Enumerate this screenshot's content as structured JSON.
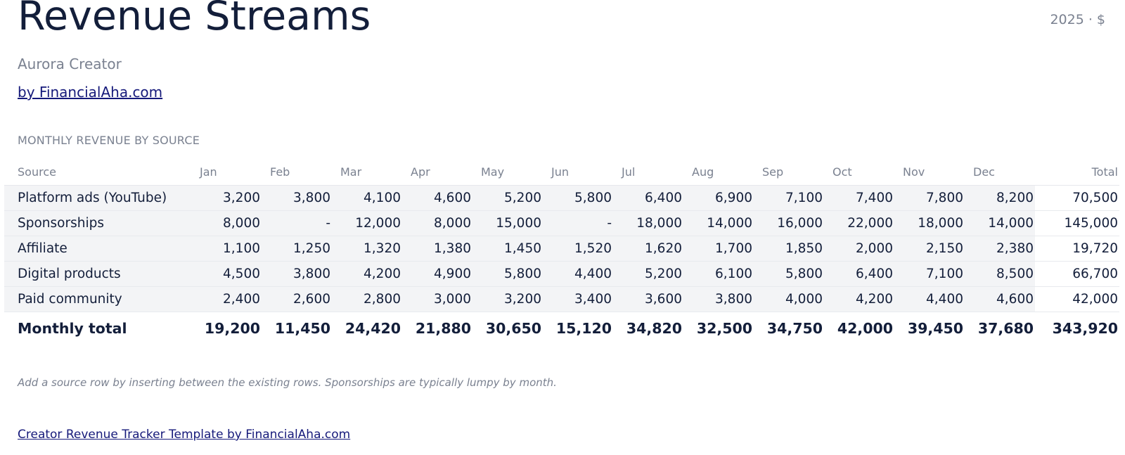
{
  "header": {
    "title": "Revenue Streams",
    "meta": "2025 · $",
    "subtitle": "Aurora Creator",
    "byline": "by FinancialAha.com"
  },
  "section_label": "MONTHLY REVENUE BY SOURCE",
  "table": {
    "columns": [
      "Source",
      "Jan",
      "Feb",
      "Mar",
      "Apr",
      "May",
      "Jun",
      "Jul",
      "Aug",
      "Sep",
      "Oct",
      "Nov",
      "Dec",
      "Total"
    ],
    "rows": [
      {
        "source": "Platform ads (YouTube)",
        "values": [
          "3,200",
          "3,800",
          "4,100",
          "4,600",
          "5,200",
          "5,800",
          "6,400",
          "6,900",
          "7,100",
          "7,400",
          "7,800",
          "8,200"
        ],
        "total": "70,500"
      },
      {
        "source": "Sponsorships",
        "values": [
          "8,000",
          "-",
          "12,000",
          "8,000",
          "15,000",
          "-",
          "18,000",
          "14,000",
          "16,000",
          "22,000",
          "18,000",
          "14,000"
        ],
        "total": "145,000"
      },
      {
        "source": "Affiliate",
        "values": [
          "1,100",
          "1,250",
          "1,320",
          "1,380",
          "1,450",
          "1,520",
          "1,620",
          "1,700",
          "1,850",
          "2,000",
          "2,150",
          "2,380"
        ],
        "total": "19,720"
      },
      {
        "source": "Digital products",
        "values": [
          "4,500",
          "3,800",
          "4,200",
          "4,900",
          "5,800",
          "4,400",
          "5,200",
          "6,100",
          "5,800",
          "6,400",
          "7,100",
          "8,500"
        ],
        "total": "66,700"
      },
      {
        "source": "Paid community",
        "values": [
          "2,400",
          "2,600",
          "2,800",
          "3,000",
          "3,200",
          "3,400",
          "3,600",
          "3,800",
          "4,000",
          "4,200",
          "4,400",
          "4,600"
        ],
        "total": "42,000"
      }
    ],
    "total_row": {
      "label": "Monthly total",
      "values": [
        "19,200",
        "11,450",
        "24,420",
        "21,880",
        "30,650",
        "15,120",
        "34,820",
        "32,500",
        "34,750",
        "42,000",
        "39,450",
        "37,680"
      ],
      "total": "343,920"
    }
  },
  "note": "Add a source row by inserting between the existing rows. Sponsorships are typically lumpy by month.",
  "footer_link": "Creator Revenue Tracker Template by FinancialAha.com",
  "colors": {
    "text": "#131e3a",
    "muted": "#7a8190",
    "link": "#15197a",
    "row_bg": "#f3f4f6"
  }
}
